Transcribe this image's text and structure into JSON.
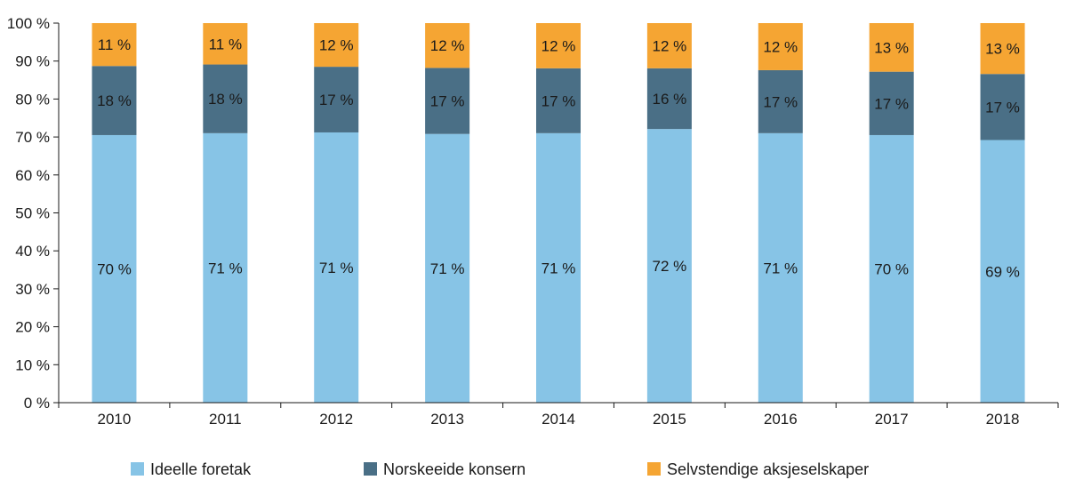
{
  "chart_data": {
    "type": "bar",
    "stacked": true,
    "title": "",
    "xlabel": "",
    "ylabel": "",
    "ylim": [
      0,
      100
    ],
    "yticks": [
      0,
      10,
      20,
      30,
      40,
      50,
      60,
      70,
      80,
      90,
      100
    ],
    "ytick_suffix": " %",
    "grid": false,
    "legend_position": "bottom",
    "categories": [
      "2010",
      "2011",
      "2012",
      "2013",
      "2014",
      "2015",
      "2016",
      "2017",
      "2018"
    ],
    "series": [
      {
        "name": "Ideelle foretak",
        "color": "#87c4e6",
        "values": [
          70.5,
          71,
          71.2,
          70.8,
          71,
          72.1,
          71,
          70.5,
          69.2
        ],
        "labels": [
          "70 %",
          "71 %",
          "71 %",
          "71 %",
          "71 %",
          "72 %",
          "71 %",
          "70 %",
          "69 %"
        ]
      },
      {
        "name": "Norskeeide konsern",
        "color": "#4a6f86",
        "values": [
          18.2,
          18.1,
          17.3,
          17.4,
          17.1,
          16,
          16.6,
          16.7,
          17.4
        ],
        "labels": [
          "18 %",
          "18 %",
          "17 %",
          "17 %",
          "17 %",
          "16 %",
          "17 %",
          "17 %",
          "17 %"
        ]
      },
      {
        "name": "Selvstendige aksjeselskaper",
        "color": "#f5a533",
        "values": [
          11.3,
          10.9,
          11.5,
          11.8,
          11.9,
          11.9,
          12.4,
          12.8,
          13.4
        ],
        "labels": [
          "11 %",
          "11 %",
          "12 %",
          "12 %",
          "12 %",
          "12 %",
          "12 %",
          "13 %",
          "13 %"
        ]
      }
    ]
  }
}
